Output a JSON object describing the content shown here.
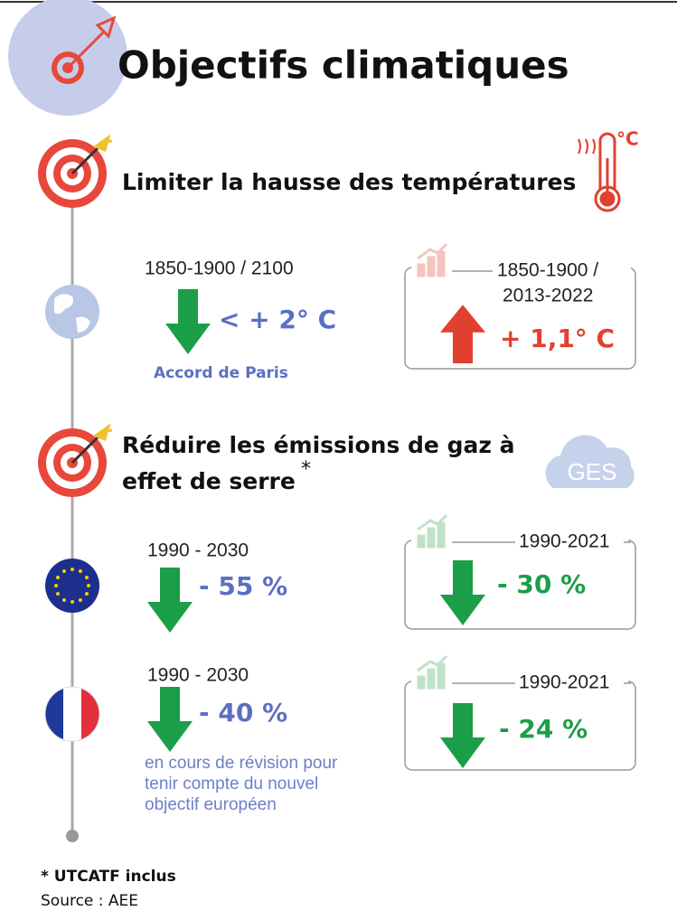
{
  "header": {
    "title": "Objectifs climatiques"
  },
  "sections": [
    {
      "title_lines": [
        "Limiter la hausse des températures"
      ],
      "icon_label": "°C",
      "rows": [
        {
          "period": "1850-1900 / 2100",
          "target": "< + 2° C",
          "note_lines": [
            "Accord de Paris"
          ],
          "observed_period_lines": [
            "1850-1900 /",
            "2013-2022"
          ],
          "observed": "+ 1,1° C"
        }
      ]
    },
    {
      "title_lines": [
        "Réduire les émissions de gaz à",
        "effet de serre"
      ],
      "title_mark": "*",
      "icon_label": "GES",
      "rows": [
        {
          "period": "1990 - 2030",
          "target": "- 55 %",
          "observed_period_lines": [
            "1990-2021"
          ],
          "observed": "- 30 %"
        },
        {
          "period": "1990 - 2030",
          "target": "- 40 %",
          "note_lines": [
            "en cours de révision pour",
            "tenir compte du nouvel",
            "objectif européen"
          ],
          "observed_period_lines": [
            "1990-2021"
          ],
          "observed": "- 24 %"
        }
      ]
    }
  ],
  "footer": {
    "note": "* UTCATF inclus",
    "source": "Source : AEE"
  }
}
